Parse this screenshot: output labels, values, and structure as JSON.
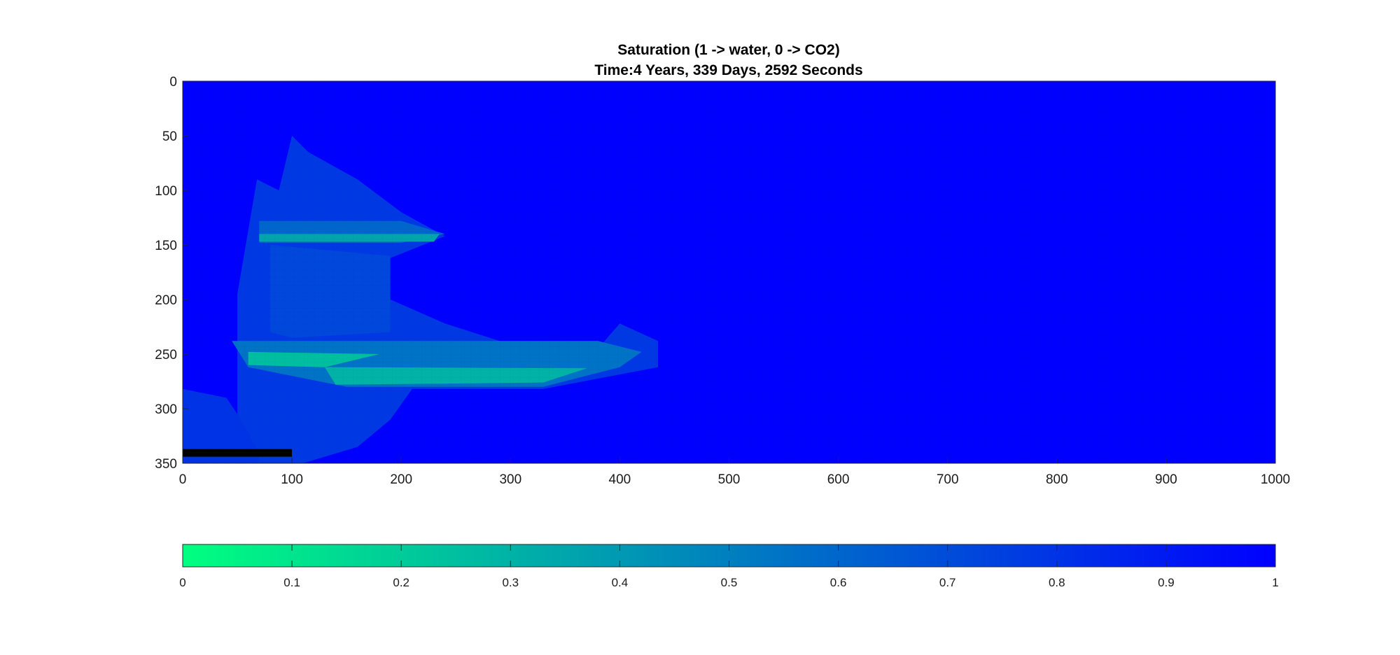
{
  "chart_data": {
    "type": "heatmap",
    "title": "Saturation (1 -> water, 0 -> CO2)",
    "subtitle": "Time:4 Years, 339 Days, 2592 Seconds",
    "xlim": [
      0,
      1000
    ],
    "ylim": [
      0,
      350
    ],
    "y_reversed": true,
    "xticks": [
      0,
      100,
      200,
      300,
      400,
      500,
      600,
      700,
      800,
      900,
      1000
    ],
    "yticks": [
      0,
      50,
      100,
      150,
      200,
      250,
      300,
      350
    ],
    "colorbar": {
      "range": [
        0,
        1
      ],
      "ticks": [
        0,
        0.1,
        0.2,
        0.3,
        0.4,
        0.5,
        0.6,
        0.7,
        0.8,
        0.9,
        1
      ],
      "color_low": "#00ff80",
      "color_high": "#0000ff",
      "orientation": "horizontal"
    },
    "background_value": 1,
    "regions": [
      {
        "name": "plume-upper-left",
        "points": [
          [
            50,
            350
          ],
          [
            50,
            195
          ],
          [
            68,
            90
          ],
          [
            88,
            100
          ],
          [
            100,
            50
          ],
          [
            115,
            65
          ],
          [
            160,
            90
          ],
          [
            200,
            120
          ],
          [
            240,
            142
          ],
          [
            190,
            162
          ],
          [
            190,
            200
          ],
          [
            240,
            222
          ],
          [
            290,
            238
          ],
          [
            380,
            245
          ],
          [
            400,
            222
          ],
          [
            435,
            238
          ],
          [
            435,
            262
          ],
          [
            330,
            282
          ],
          [
            210,
            282
          ],
          [
            190,
            310
          ],
          [
            160,
            335
          ],
          [
            110,
            350
          ]
        ],
        "value": 0.78
      },
      {
        "name": "plume-lower-left-edge",
        "points": [
          [
            0,
            282
          ],
          [
            40,
            290
          ],
          [
            50,
            305
          ],
          [
            70,
            340
          ],
          [
            70,
            350
          ],
          [
            0,
            350
          ]
        ],
        "value": 0.8
      },
      {
        "name": "upper-layer-band",
        "points": [
          [
            70,
            128
          ],
          [
            200,
            128
          ],
          [
            240,
            140
          ],
          [
            200,
            148
          ],
          [
            70,
            148
          ]
        ],
        "value": 0.6
      },
      {
        "name": "upper-layer-core",
        "points": [
          [
            70,
            140
          ],
          [
            235,
            140
          ],
          [
            230,
            147
          ],
          [
            70,
            147
          ]
        ],
        "value": 0.35
      },
      {
        "name": "lower-layer-band",
        "points": [
          [
            45,
            238
          ],
          [
            380,
            238
          ],
          [
            420,
            248
          ],
          [
            400,
            262
          ],
          [
            330,
            280
          ],
          [
            150,
            280
          ],
          [
            60,
            262
          ]
        ],
        "value": 0.55
      },
      {
        "name": "lower-layer-core-1",
        "points": [
          [
            60,
            248
          ],
          [
            180,
            250
          ],
          [
            130,
            262
          ],
          [
            60,
            260
          ]
        ],
        "value": 0.25
      },
      {
        "name": "lower-layer-core-2",
        "points": [
          [
            130,
            262
          ],
          [
            370,
            263
          ],
          [
            330,
            276
          ],
          [
            140,
            278
          ]
        ],
        "value": 0.3
      },
      {
        "name": "plume-middle-column",
        "points": [
          [
            80,
            150
          ],
          [
            190,
            160
          ],
          [
            190,
            230
          ],
          [
            100,
            235
          ],
          [
            80,
            230
          ]
        ],
        "value": 0.72
      }
    ],
    "injection_well": {
      "x": [
        0,
        100
      ],
      "y": [
        337,
        344
      ]
    }
  }
}
